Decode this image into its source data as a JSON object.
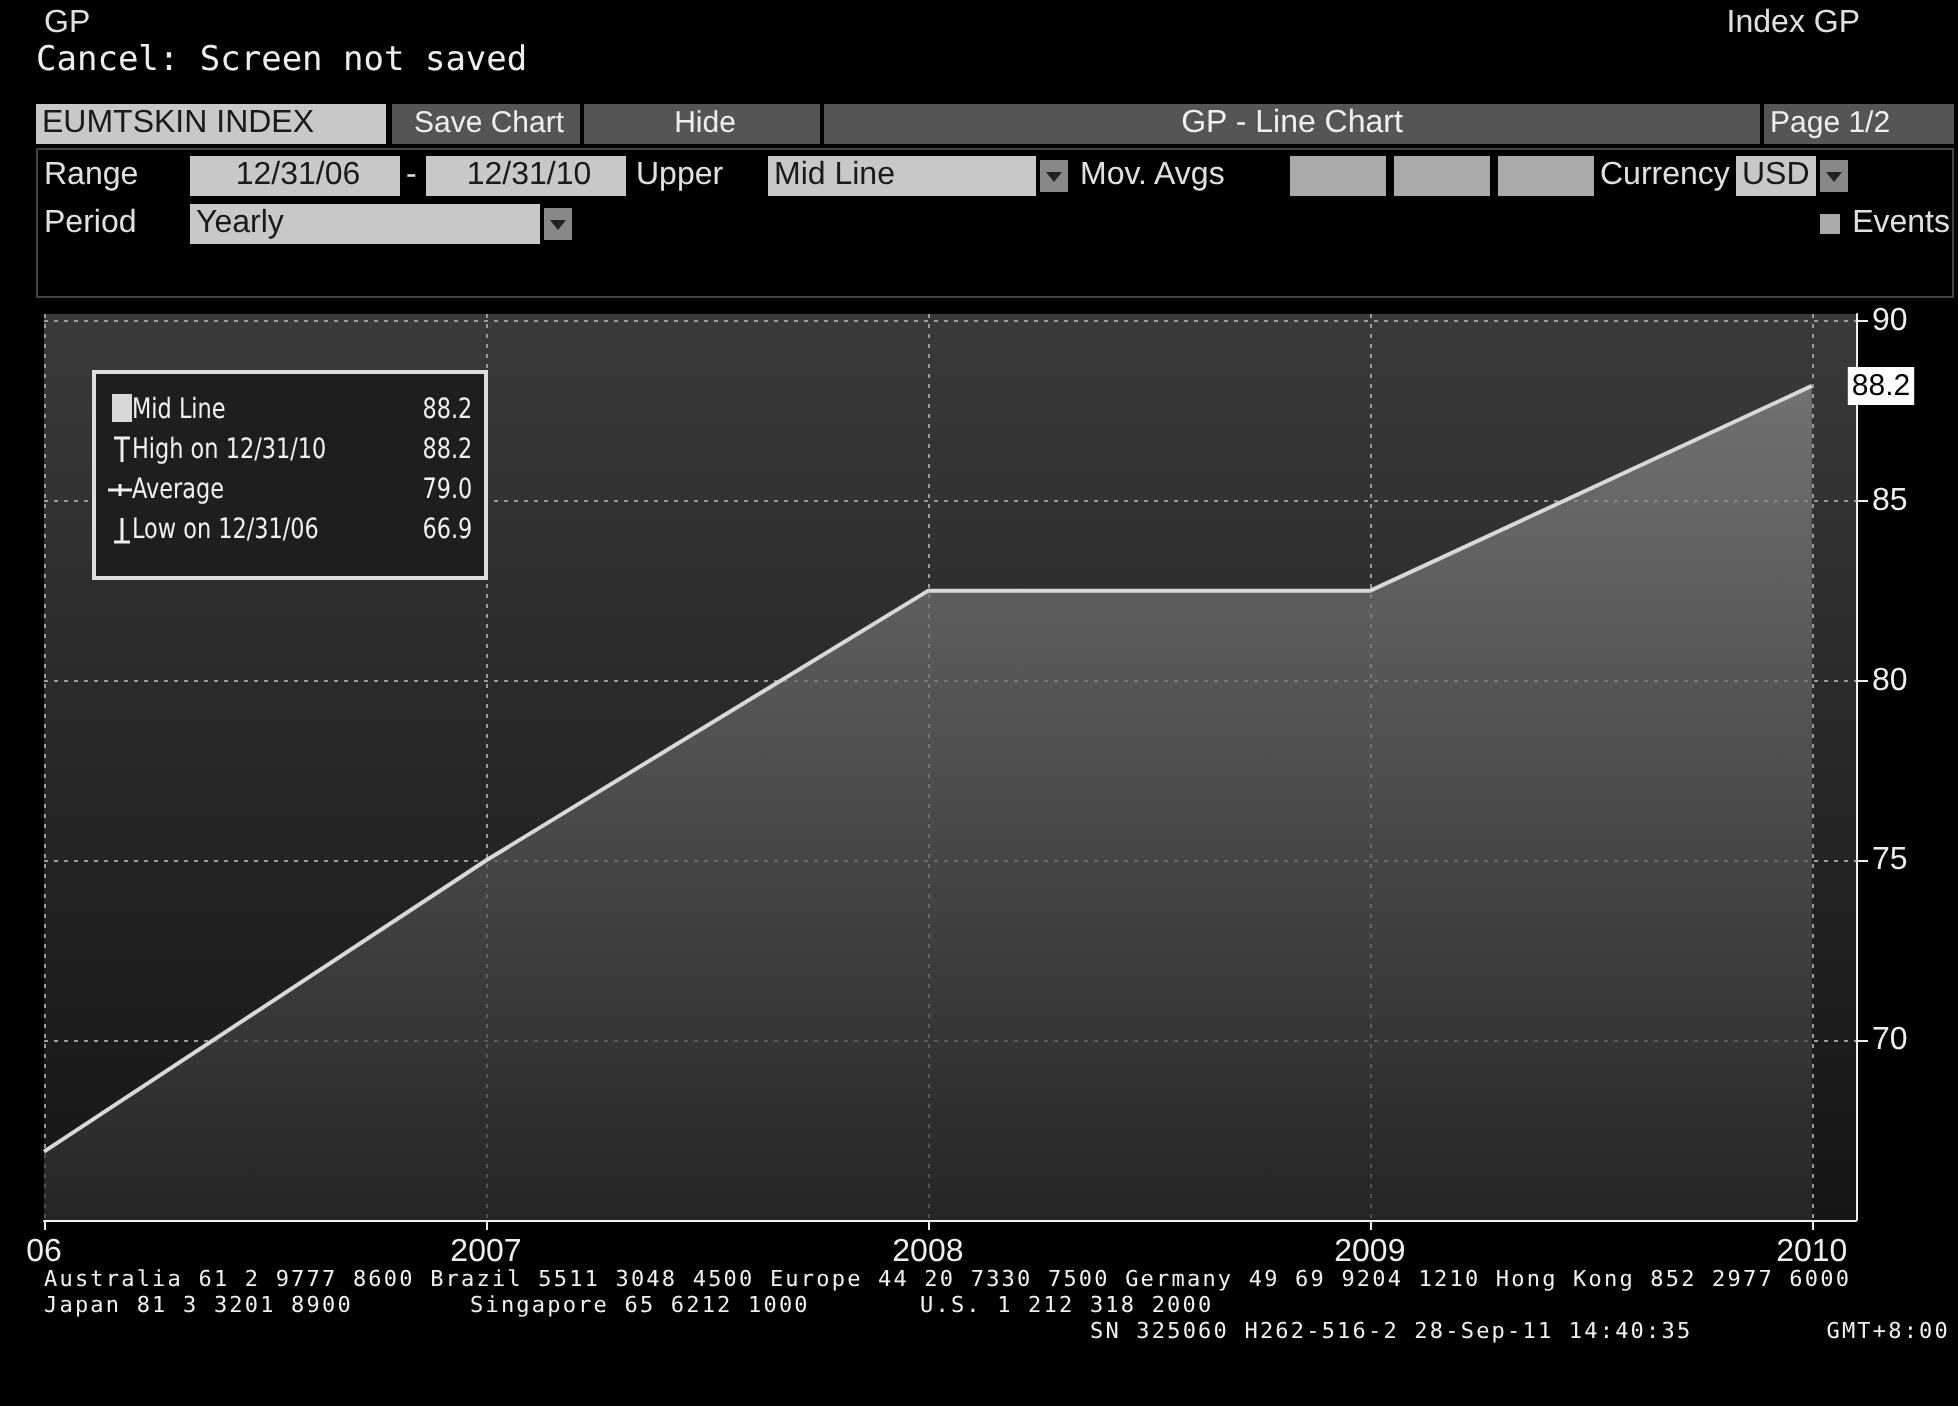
{
  "chart_data": {
    "type": "area",
    "title": "GP - Line Chart",
    "subtitle": "Cancel: Screen not saved",
    "x": [
      2006,
      2007,
      2008,
      2009,
      2010
    ],
    "series": [
      {
        "name": "Mid Line",
        "color": "#d8d8d8",
        "values": [
          66.9,
          75.0,
          82.5,
          82.5,
          88.2
        ],
        "value_labels": [
          null,
          null,
          null,
          null,
          "88.2"
        ]
      }
    ],
    "xlim": [
      2006,
      2010.1
    ],
    "xticks": [
      {
        "value": 2006,
        "label": "06"
      },
      2007,
      2008,
      2009,
      2010
    ],
    "ylim": [
      65,
      90.2
    ],
    "yticks": [
      70,
      75,
      80,
      85,
      90
    ],
    "grid": true,
    "legend": "top left",
    "marker": "none",
    "line_style": "solid",
    "annotations": [
      "GP",
      "Index GP",
      "EUMTSKIN INDEX",
      "Save Chart",
      "Hide",
      "Page 1/2",
      "Range",
      "12/31/06",
      "-",
      "12/31/10",
      "Upper",
      "Mid Line",
      "Mov. Avgs",
      "Currency",
      "USD",
      "Period",
      "Yearly",
      "Events",
      "88.2",
      "High on 12/31/10",
      "88.2",
      "Average",
      "79.0",
      "Low on 12/31/06",
      "66.9",
      "Australia 61 2 9777 8600 Brazil 5511 3048 4500 Europe 44 20 7330 7500 Germany 49 69 9204 1210 Hong Kong 852 2977 6000",
      "Japan 81 3 3201 8900",
      "Singapore 65 6212 1000",
      "U.S. 1 212 318 2000",
      "SN 325060 H262-516-2 28-Sep-11 14:40:35",
      "GMT+8:00"
    ]
  }
}
